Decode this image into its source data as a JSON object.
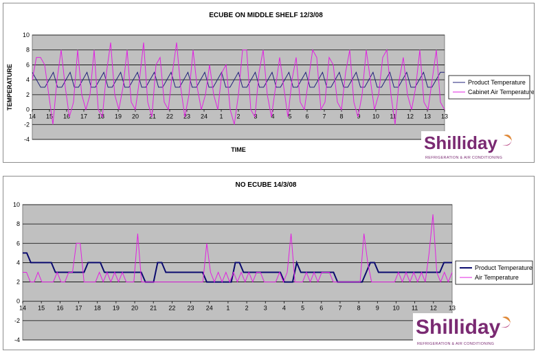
{
  "chart_data": [
    {
      "type": "line",
      "title": "ECUBE ON MIDDLE SHELF 12/3/08",
      "xlabel": "TIME",
      "ylabel": "TEMPERATURE",
      "ylim": [
        -4,
        10
      ],
      "yticks": [
        -4,
        -2,
        0,
        2,
        4,
        6,
        8,
        10
      ],
      "xticks": [
        "14",
        "15",
        "16",
        "17",
        "18",
        "19",
        "20",
        "21",
        "22",
        "23",
        "24",
        "1",
        "2",
        "3",
        "4",
        "5",
        "6",
        "7",
        "8",
        "9",
        "10",
        "11",
        "12",
        "13",
        "13"
      ],
      "grid": true,
      "legend_placement": "right",
      "series": [
        {
          "name": "Product Temperature",
          "color": "#1f1f7a",
          "values": [
            5,
            4,
            3,
            3,
            4,
            5,
            3,
            3,
            4,
            5,
            3,
            3,
            4,
            5,
            3,
            3,
            4,
            5,
            3,
            3,
            4,
            5,
            3,
            3,
            4,
            5,
            3,
            3,
            4,
            5,
            3,
            3,
            4,
            5,
            3,
            3,
            4,
            5,
            3,
            3,
            4,
            5,
            3,
            3,
            4,
            5,
            3,
            3,
            4,
            5,
            3,
            3,
            4,
            5,
            3,
            3,
            4,
            5,
            3,
            3,
            4,
            5,
            3,
            3,
            4,
            5,
            3,
            3,
            4,
            5,
            3,
            3,
            4,
            5,
            3,
            3,
            4,
            5,
            3,
            3,
            4,
            5,
            3,
            3,
            4,
            5,
            3,
            3,
            4,
            5,
            3,
            3,
            4,
            5,
            3,
            3,
            4,
            5,
            5
          ]
        },
        {
          "name": "Cabinet Air Temperature",
          "color": "#e020e0",
          "values": [
            4,
            7,
            7,
            6,
            2,
            -2,
            4,
            8,
            3,
            -1,
            1,
            8,
            2,
            0,
            2,
            8,
            0,
            -1,
            5,
            9,
            2,
            0,
            3,
            8,
            1,
            0,
            4,
            9,
            1,
            -1,
            6,
            7,
            1,
            0,
            5,
            9,
            3,
            -1,
            2,
            8,
            3,
            0,
            2,
            6,
            2,
            0,
            5,
            6,
            0,
            -2,
            2,
            8,
            8,
            0,
            -1,
            5,
            8,
            2,
            -1,
            3,
            7,
            3,
            -1,
            4,
            7,
            1,
            0,
            4,
            8,
            7,
            0,
            1,
            7,
            6,
            1,
            0,
            5,
            8,
            1,
            -1,
            2,
            8,
            4,
            0,
            2,
            7,
            8,
            2,
            -2,
            4,
            7,
            2,
            0,
            3,
            8,
            1,
            0,
            4,
            8,
            1,
            0
          ]
        }
      ],
      "logo": {
        "word": "Shilliday",
        "tagline": "REFRIGERATION & AIR CONDITIONING"
      }
    },
    {
      "type": "line",
      "title": "NO ECUBE 14/3/08",
      "xlabel": "",
      "ylabel": "",
      "ylim": [
        -4,
        10
      ],
      "yticks": [
        -4,
        -2,
        0,
        2,
        4,
        6,
        8,
        10
      ],
      "xticks": [
        "14",
        "15",
        "16",
        "17",
        "18",
        "19",
        "20",
        "21",
        "22",
        "23",
        "24",
        "1",
        "2",
        "3",
        "4",
        "5",
        "6",
        "7",
        "8",
        "9",
        "10",
        "11",
        "12",
        "13"
      ],
      "grid": true,
      "legend_placement": "right",
      "series": [
        {
          "name": "Product Temperature",
          "color": "#0a0a6e",
          "values": [
            5,
            5,
            4,
            4,
            4,
            4,
            4,
            4,
            3,
            3,
            3,
            3,
            3,
            3,
            3,
            3,
            4,
            4,
            4,
            4,
            3,
            3,
            3,
            3,
            3,
            3,
            3,
            3,
            3,
            3,
            2,
            2,
            2,
            4,
            4,
            3,
            3,
            3,
            3,
            3,
            3,
            3,
            3,
            3,
            3,
            2,
            2,
            2,
            2,
            2,
            2,
            2,
            4,
            4,
            3,
            3,
            3,
            3,
            3,
            3,
            3,
            3,
            3,
            3,
            2,
            2,
            2,
            4,
            3,
            3,
            3,
            3,
            3,
            3,
            3,
            3,
            3,
            2,
            2,
            2,
            2,
            2,
            2,
            2,
            3,
            4,
            4,
            3,
            3,
            3,
            3,
            3,
            3,
            3,
            3,
            3,
            3,
            3,
            3,
            3,
            3,
            3,
            3,
            4,
            4,
            4
          ]
        },
        {
          "name": "Air Temperature",
          "color": "#e020e0",
          "values": [
            3,
            3,
            2,
            2,
            3,
            2,
            2,
            2,
            2,
            3,
            2,
            2,
            3,
            3,
            6,
            6,
            2,
            2,
            2,
            2,
            3,
            2,
            3,
            2,
            3,
            2,
            3,
            2,
            2,
            2,
            7,
            2,
            2,
            2,
            2,
            2,
            2,
            2,
            2,
            2,
            2,
            2,
            2,
            2,
            2,
            2,
            2,
            2,
            6,
            3,
            2,
            3,
            2,
            3,
            2,
            3,
            2,
            3,
            2,
            3,
            2,
            3,
            3,
            2,
            2,
            2,
            2,
            3,
            2,
            3,
            7,
            2,
            2,
            2,
            3,
            2,
            3,
            2,
            3,
            3,
            3,
            2,
            2,
            2,
            2,
            2,
            2,
            2,
            2,
            7,
            4,
            2,
            2,
            2,
            2,
            2,
            2,
            2,
            3,
            2,
            3,
            2,
            3,
            2,
            3,
            2,
            5,
            9,
            3,
            2,
            3,
            2,
            3
          ]
        }
      ],
      "logo": {
        "word": "Shilliday",
        "tagline": "REFRIGERATION & AIR CONDITIONING"
      }
    }
  ]
}
